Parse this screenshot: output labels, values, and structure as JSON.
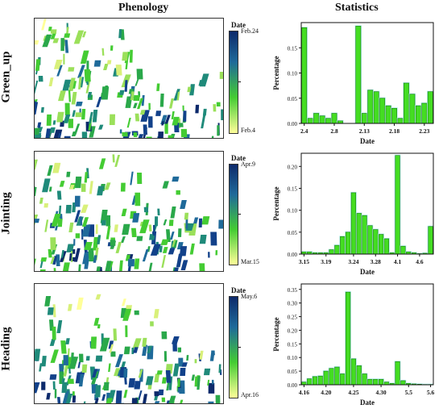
{
  "headers": {
    "phenology": "Phenology",
    "statistics": "Statistics"
  },
  "colors": {
    "map_low": "#ffff99",
    "map_mid": "#44cc33",
    "map_high": "#0d2a6b",
    "bar_fill": "#44dd22",
    "bar_edge": "#1a7a10",
    "bar_glow": "#b8f0f0"
  },
  "rows": [
    {
      "label": "Green_up",
      "colorbar": {
        "title": "Date",
        "max_label": "Feb.24",
        "min_label": "Feb.4"
      },
      "chart_data": {
        "type": "bar",
        "xlabel": "Date",
        "ylabel": "Percentage",
        "ylim": [
          0,
          0.2
        ],
        "yticks": [
          0.0,
          0.05,
          0.1,
          0.15
        ],
        "ytick_labels": [
          "0.00",
          "0.05",
          "0.10",
          "0.15"
        ],
        "tick_positions": [
          0,
          5,
          10,
          15,
          20
        ],
        "tick_labels": [
          "2.4",
          "2.8",
          "2.13",
          "2.18",
          "2.23"
        ],
        "values": [
          0.19,
          0.01,
          0.02,
          0.015,
          0.01,
          0.02,
          0.005,
          0,
          0,
          0.193,
          0.02,
          0.066,
          0.063,
          0.05,
          0.035,
          0.03,
          0.01,
          0.08,
          0.058,
          0.035,
          0.04,
          0.063
        ]
      }
    },
    {
      "label": "Jointing",
      "colorbar": {
        "title": "Date",
        "max_label": "Apr.9",
        "min_label": "Mar.15"
      },
      "chart_data": {
        "type": "bar",
        "xlabel": "Date",
        "ylabel": "Percentage",
        "ylim": [
          0,
          0.23
        ],
        "yticks": [
          0.0,
          0.05,
          0.1,
          0.15,
          0.2
        ],
        "ytick_labels": [
          "0.00",
          "0.05",
          "0.10",
          "0.15",
          "0.20"
        ],
        "tick_positions": [
          0,
          4,
          9,
          13,
          17,
          21
        ],
        "tick_labels": [
          "3.15",
          "3.19",
          "3.24",
          "3.28",
          "4.1",
          "4.6"
        ],
        "values": [
          0.005,
          0.005,
          0.003,
          0.003,
          0.003,
          0.01,
          0.02,
          0.04,
          0.05,
          0.14,
          0.093,
          0.088,
          0.065,
          0.056,
          0.045,
          0.035,
          0.003,
          0.225,
          0.018,
          0.005,
          0.003,
          0.001,
          0.002,
          0.063
        ]
      }
    },
    {
      "label": "Heading",
      "colorbar": {
        "title": "Date",
        "max_label": "May.6",
        "min_label": "Apr.16"
      },
      "chart_data": {
        "type": "bar",
        "xlabel": "Date",
        "ylabel": "Percentage",
        "ylim": [
          0,
          0.37
        ],
        "yticks": [
          0.0,
          0.05,
          0.1,
          0.15,
          0.2,
          0.25,
          0.3,
          0.35
        ],
        "ytick_labels": [
          "0.00",
          "0.05",
          "0.10",
          "0.15",
          "0.20",
          "0.25",
          "0.30",
          "0.35"
        ],
        "tick_positions": [
          0,
          4,
          9,
          14,
          19,
          23
        ],
        "tick_labels": [
          "4.16",
          "4.20",
          "4.25",
          "4.30",
          "5.5",
          "5.6"
        ],
        "values": [
          0.01,
          0.022,
          0.03,
          0.032,
          0.05,
          0.06,
          0.065,
          0.04,
          0.34,
          0.095,
          0.07,
          0.04,
          0.02,
          0.02,
          0.02,
          0.01,
          0.005,
          0.085,
          0.015,
          0.005,
          0.003,
          0.002,
          0.001,
          0.001
        ]
      }
    }
  ]
}
